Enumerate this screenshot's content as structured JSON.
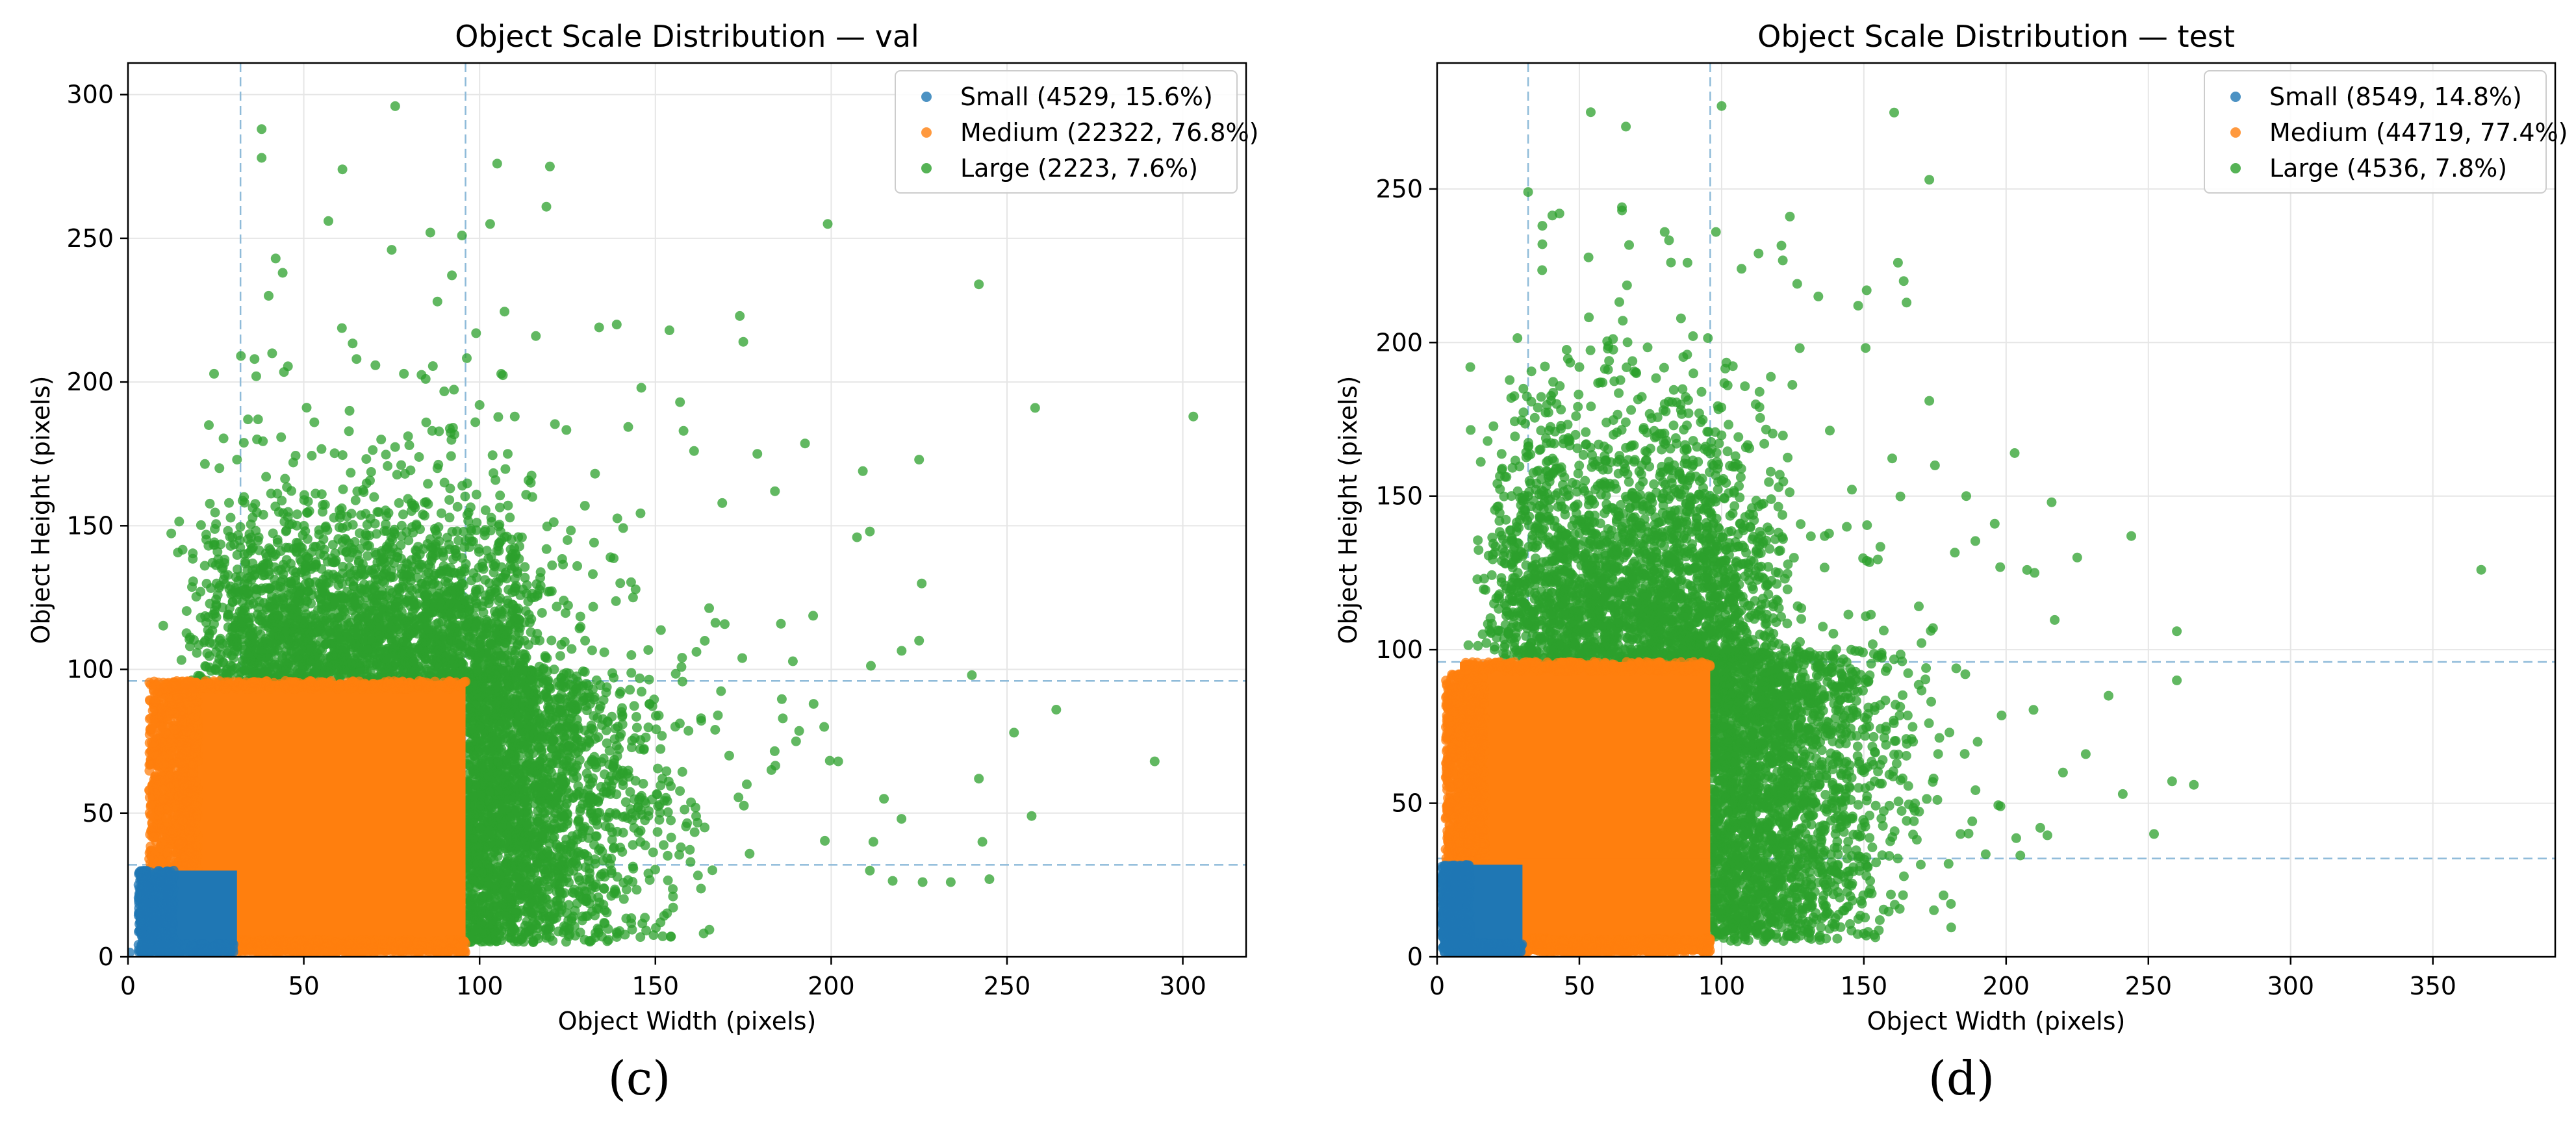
{
  "chart_data": [
    {
      "type": "scatter",
      "title": "Object Scale Distribution — val",
      "xlabel": "Object Width (pixels)",
      "ylabel": "Object Height (pixels)",
      "xlim": [
        0,
        318
      ],
      "ylim": [
        0,
        311
      ],
      "xticks": [
        0,
        50,
        100,
        150,
        200,
        250,
        300
      ],
      "yticks": [
        0,
        50,
        100,
        150,
        200,
        250,
        300
      ],
      "grid": true,
      "legend_position": "upper right",
      "thresholds": [
        32,
        96
      ],
      "series": [
        {
          "name": "Small (4529, 15.6%)",
          "color": "#1f77b4",
          "count": 4529,
          "region": {
            "x": [
              4,
              32
            ],
            "y": [
              3,
              32
            ]
          },
          "points": [
            [
              0.5,
              1.5
            ],
            [
              3,
              25
            ],
            [
              4,
              8
            ],
            [
              5,
              18
            ]
          ]
        },
        {
          "name": "Medium (22322, 76.8%)",
          "color": "#ff7f0e",
          "count": 22322,
          "region": {
            "x": [
              6,
              96
            ],
            "y": [
              3,
              96
            ]
          },
          "points": [
            [
              6,
              58
            ],
            [
              7,
              45
            ],
            [
              8,
              70
            ],
            [
              9,
              38
            ],
            [
              10,
              78
            ],
            [
              12,
              85
            ],
            [
              14,
              90
            ],
            [
              10,
              55
            ],
            [
              8,
              40
            ]
          ]
        },
        {
          "name": "Large (2223, 7.6%)",
          "color": "#2ca02c",
          "count": 2223,
          "points": [
            [
              38,
              288
            ],
            [
              38,
              278
            ],
            [
              76,
              296
            ],
            [
              57,
              256
            ],
            [
              61,
              274
            ],
            [
              95,
              251
            ],
            [
              105,
              276
            ],
            [
              120,
              275
            ],
            [
              99,
              217
            ],
            [
              116,
              216
            ],
            [
              119,
              261
            ],
            [
              103,
              255
            ],
            [
              75,
              246
            ],
            [
              86,
              252
            ],
            [
              88,
              228
            ],
            [
              65,
              208
            ],
            [
              41,
              210
            ],
            [
              36,
              208
            ],
            [
              40,
              230
            ],
            [
              44,
              238
            ],
            [
              42,
              243
            ],
            [
              37,
              187
            ],
            [
              23,
              185
            ],
            [
              31,
              173
            ],
            [
              26,
              170
            ],
            [
              22,
              110
            ],
            [
              139,
              220
            ],
            [
              134,
              219
            ],
            [
              154,
              218
            ],
            [
              157,
              193
            ],
            [
              146,
              198
            ],
            [
              158,
              183
            ],
            [
              161,
              176
            ],
            [
              174,
              223
            ],
            [
              175,
              214
            ],
            [
              179,
              175
            ],
            [
              184,
              162
            ],
            [
              199,
              255
            ],
            [
              209,
              169
            ],
            [
              211,
              148
            ],
            [
              225,
              173
            ],
            [
              242,
              234
            ],
            [
              258,
              191
            ],
            [
              303,
              188
            ],
            [
              292,
              68
            ],
            [
              264,
              86
            ],
            [
              257,
              49
            ],
            [
              252,
              78
            ],
            [
              243,
              40
            ],
            [
              242,
              62
            ],
            [
              240,
              98
            ],
            [
              225,
              110
            ],
            [
              226,
              26
            ],
            [
              234,
              26
            ],
            [
              245,
              27
            ],
            [
              211,
              30
            ],
            [
              212,
              40
            ],
            [
              220,
              48
            ],
            [
              215,
              55
            ],
            [
              202,
              68
            ],
            [
              198,
              80
            ],
            [
              195,
              88
            ],
            [
              190,
              75
            ],
            [
              183,
              65
            ],
            [
              176,
              60
            ],
            [
              171,
              70
            ],
            [
              167,
              79
            ],
            [
              164,
              45
            ],
            [
              160,
              33
            ],
            [
              155,
              21
            ],
            [
              148,
              29
            ],
            [
              140,
              38
            ],
            [
              133,
              42
            ],
            [
              128,
              47
            ],
            [
              125,
              55
            ],
            [
              120,
              60
            ],
            [
              115,
              65
            ],
            [
              110,
              70
            ],
            [
              105,
              75
            ],
            [
              100,
              80
            ],
            [
              98,
              85
            ],
            [
              99,
              50
            ],
            [
              101,
              35
            ],
            [
              112,
              40
            ],
            [
              124,
              30
            ],
            [
              137,
              45
            ],
            [
              145,
              52
            ],
            [
              152,
              62
            ],
            [
              130,
              110
            ],
            [
              140,
              130
            ],
            [
              125,
              145
            ],
            [
              115,
              160
            ],
            [
              108,
              175
            ],
            [
              100,
              192
            ],
            [
              110,
              188
            ],
            [
              90,
              165
            ],
            [
              82,
              150
            ],
            [
              75,
              140
            ],
            [
              68,
              128
            ],
            [
              60,
              118
            ],
            [
              52,
              108
            ],
            [
              45,
              100
            ],
            [
              55,
              135
            ],
            [
              62,
              145
            ],
            [
              70,
              160
            ],
            [
              48,
              150
            ],
            [
              40,
              128
            ],
            [
              35,
              118
            ],
            [
              30,
              104
            ],
            [
              85,
              120
            ],
            [
              92,
              110
            ],
            [
              95,
              130
            ],
            [
              78,
              105
            ],
            [
              65,
              102
            ],
            [
              58,
              125
            ],
            [
              50,
              115
            ],
            [
              42,
              140
            ],
            [
              33,
              160
            ],
            [
              47,
              172
            ],
            [
              53,
              186
            ],
            [
              63,
              190
            ],
            [
              72,
              180
            ],
            [
              80,
              178
            ],
            [
              88,
              170
            ]
          ]
        }
      ]
    },
    {
      "type": "scatter",
      "title": "Object Scale Distribution — test",
      "xlabel": "Object Width (pixels)",
      "ylabel": "Object Height (pixels)",
      "xlim": [
        0,
        393
      ],
      "ylim": [
        0,
        291
      ],
      "xticks": [
        0,
        50,
        100,
        150,
        200,
        250,
        300,
        350
      ],
      "yticks": [
        0,
        50,
        100,
        150,
        200,
        250
      ],
      "grid": true,
      "legend_position": "upper right",
      "thresholds": [
        32,
        96
      ],
      "series": [
        {
          "name": "Small (8549, 14.8%)",
          "color": "#1f77b4",
          "count": 8549,
          "region": {
            "x": [
              2,
              30
            ],
            "y": [
              2,
              30
            ]
          },
          "points": [
            [
              2,
              8
            ],
            [
              3,
              18
            ],
            [
              4,
              25
            ],
            [
              5,
              12
            ]
          ]
        },
        {
          "name": "Medium (44719, 77.4%)",
          "color": "#ff7f0e",
          "count": 44719,
          "region": {
            "x": [
              4,
              96
            ],
            "y": [
              2,
              96
            ]
          },
          "points": [
            [
              4,
              60
            ],
            [
              3,
              45
            ],
            [
              5,
              75
            ],
            [
              6,
              88
            ],
            [
              3,
              35
            ],
            [
              5,
              50
            ],
            [
              8,
              92
            ]
          ]
        },
        {
          "name": "Large (4536, 7.8%)",
          "color": "#2ca02c",
          "count": 4536,
          "points": [
            [
              32,
              249
            ],
            [
              37,
              238
            ],
            [
              43,
              242
            ],
            [
              37,
              232
            ],
            [
              54,
              275
            ],
            [
              100,
              277
            ],
            [
              98,
              236
            ],
            [
              88,
              226
            ],
            [
              65,
              243
            ],
            [
              80,
              236
            ],
            [
              107,
              224
            ],
            [
              113,
              229
            ],
            [
              124,
              241
            ],
            [
              134,
              215
            ],
            [
              148,
              212
            ],
            [
              151,
              217
            ],
            [
              162,
              226
            ],
            [
              164,
              220
            ],
            [
              165,
              213
            ],
            [
              173,
              253
            ],
            [
              173,
              181
            ],
            [
              144,
              140
            ],
            [
              175,
              160
            ],
            [
              186,
              150
            ],
            [
              196,
              141
            ],
            [
              203,
              164
            ],
            [
              216,
              148
            ],
            [
              225,
              130
            ],
            [
              210,
              125
            ],
            [
              244,
              137
            ],
            [
              260,
              106
            ],
            [
              367,
              126
            ],
            [
              266,
              56
            ],
            [
              260,
              90
            ],
            [
              252,
              40
            ],
            [
              241,
              53
            ],
            [
              236,
              85
            ],
            [
              228,
              66
            ],
            [
              220,
              60
            ],
            [
              212,
              42
            ],
            [
              205,
              33
            ],
            [
              198,
              49
            ],
            [
              190,
              70
            ],
            [
              184,
              40
            ],
            [
              178,
              20
            ],
            [
              170,
              30
            ],
            [
              160,
              39
            ],
            [
              152,
              46
            ],
            [
              145,
              55
            ],
            [
              138,
              64
            ],
            [
              130,
              72
            ],
            [
              122,
              80
            ],
            [
              115,
              88
            ],
            [
              108,
              95
            ],
            [
              100,
              75
            ],
            [
              97,
              60
            ],
            [
              99,
              45
            ],
            [
              102,
              35
            ],
            [
              110,
              45
            ],
            [
              118,
              55
            ],
            [
              125,
              60
            ],
            [
              132,
              50
            ],
            [
              140,
              40
            ],
            [
              128,
              110
            ],
            [
              120,
              125
            ],
            [
              110,
              140
            ],
            [
              100,
              155
            ],
            [
              90,
              168
            ],
            [
              80,
              180
            ],
            [
              70,
              190
            ],
            [
              60,
              198
            ],
            [
              50,
              192
            ],
            [
              42,
              180
            ],
            [
              36,
              165
            ],
            [
              32,
              150
            ],
            [
              28,
              140
            ],
            [
              24,
              128
            ],
            [
              20,
              115
            ],
            [
              16,
              105
            ],
            [
              45,
              120
            ],
            [
              55,
              130
            ],
            [
              65,
              140
            ],
            [
              75,
              125
            ],
            [
              85,
              110
            ],
            [
              95,
              120
            ],
            [
              60,
              108
            ],
            [
              40,
              100
            ],
            [
              52,
              155
            ],
            [
              62,
              170
            ],
            [
              72,
              160
            ],
            [
              82,
              150
            ],
            [
              92,
              140
            ]
          ]
        }
      ]
    }
  ],
  "captions": [
    "(c)",
    "(d)"
  ]
}
